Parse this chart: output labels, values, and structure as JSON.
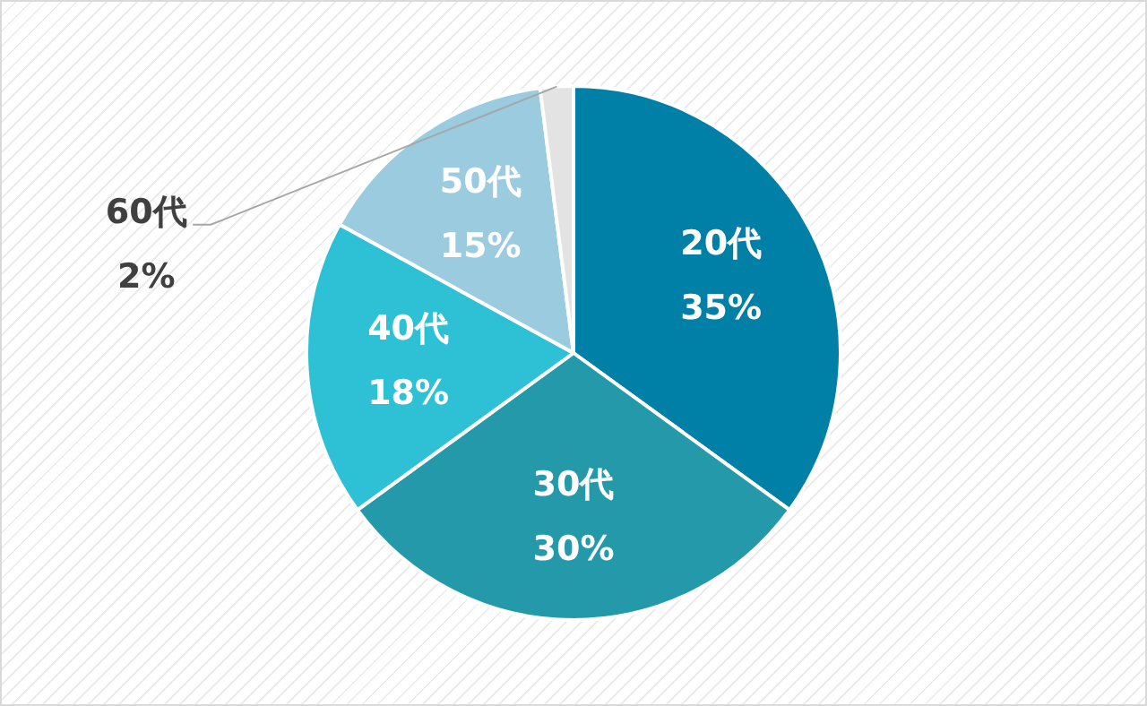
{
  "chart_data": {
    "type": "pie",
    "categories": [
      "20代",
      "30代",
      "40代",
      "50代",
      "60代"
    ],
    "values": [
      35,
      30,
      18,
      15,
      2
    ],
    "colors": [
      "#0080a6",
      "#2399a9",
      "#2ec0d4",
      "#9bcbdf",
      "#e3e3e3"
    ],
    "value_labels": [
      "35%",
      "30%",
      "18%",
      "15%",
      "2%"
    ],
    "legend": false
  }
}
